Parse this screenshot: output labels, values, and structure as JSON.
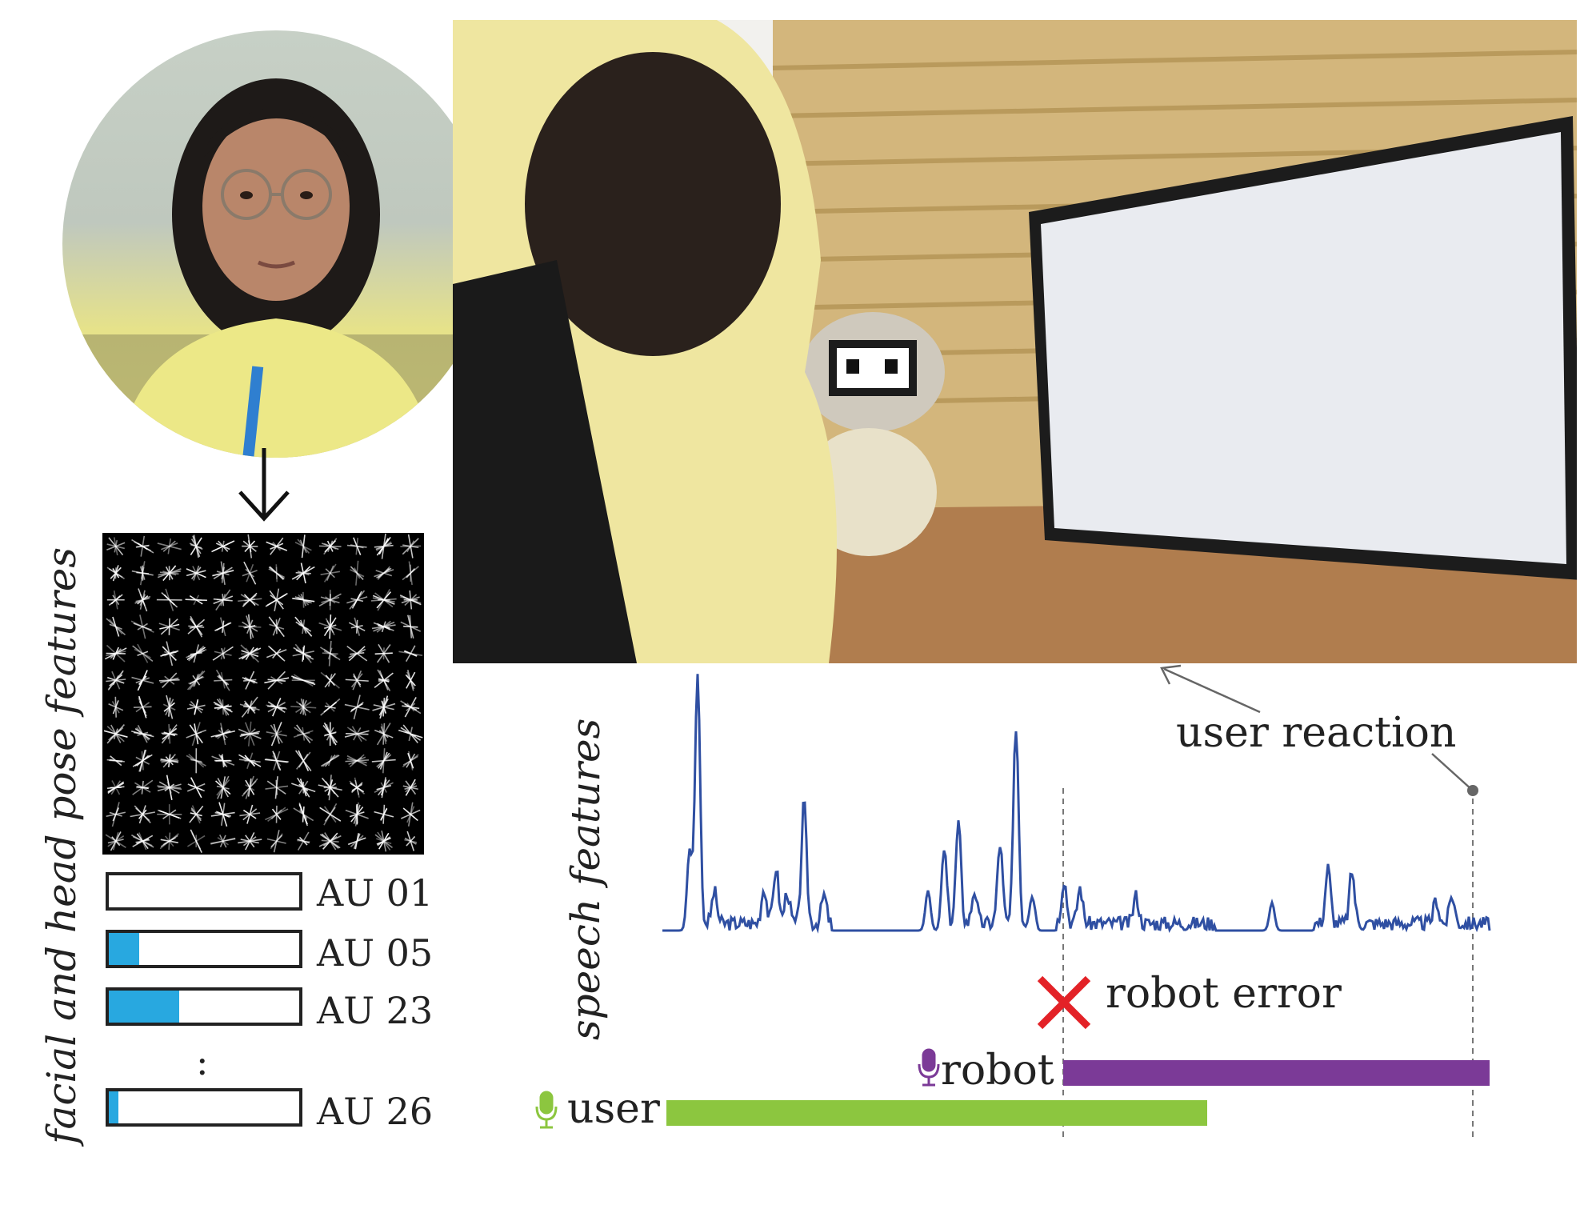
{
  "left_panel": {
    "vertical_label": "facial and head pose features",
    "action_units": [
      {
        "label": "AU 01",
        "level": 0.0
      },
      {
        "label": "AU 05",
        "level": 0.16
      },
      {
        "label": "AU 23",
        "level": 0.37
      },
      {
        "label": "AU 26",
        "level": 0.05
      }
    ],
    "ellipsis": ":"
  },
  "right_panel": {
    "vertical_label": "speech features",
    "user_reaction_label": "user reaction",
    "robot_error_label": "robot error",
    "robot_label": "robot",
    "user_label": "user"
  },
  "colors": {
    "au_fill": "#28a8e0",
    "waveform": "#2f4fa2",
    "robot_bar": "#7b3a97",
    "user_bar": "#8cc63f",
    "error_x": "#e32227",
    "annotation": "#666666"
  },
  "icons": [
    "microphone-icon",
    "close-icon",
    "arrow-down-icon"
  ]
}
